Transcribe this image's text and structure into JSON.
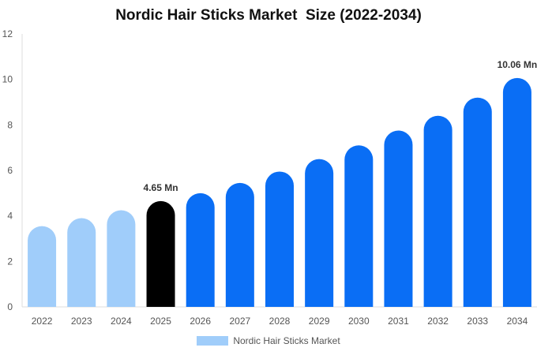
{
  "chart_data": {
    "type": "bar",
    "title": "Nordic Hair Sticks Market  Size (2022-2034)",
    "categories": [
      "2022",
      "2023",
      "2024",
      "2025",
      "2026",
      "2027",
      "2028",
      "2029",
      "2030",
      "2031",
      "2032",
      "2033",
      "2034"
    ],
    "series": [
      {
        "name": "Nordic Hair Sticks Market",
        "values": [
          3.55,
          3.9,
          4.25,
          4.65,
          5.0,
          5.45,
          5.95,
          6.5,
          7.1,
          7.75,
          8.4,
          9.2,
          10.06
        ]
      }
    ],
    "bar_colors": [
      "#a0cdfa",
      "#a0cdfa",
      "#a0cdfa",
      "#000000",
      "#0a6ef5",
      "#0a6ef5",
      "#0a6ef5",
      "#0a6ef5",
      "#0a6ef5",
      "#0a6ef5",
      "#0a6ef5",
      "#0a6ef5",
      "#0a6ef5"
    ],
    "data_labels": [
      {
        "index": 3,
        "text": "4.65 Mn"
      },
      {
        "index": 12,
        "text": "10.06 Mn"
      }
    ],
    "yticks": [
      0,
      2,
      4,
      6,
      8,
      10,
      12
    ],
    "ylim": [
      0,
      12
    ],
    "grid": false,
    "legend_position": "bottom",
    "legend_color": "#a0cdfa"
  }
}
